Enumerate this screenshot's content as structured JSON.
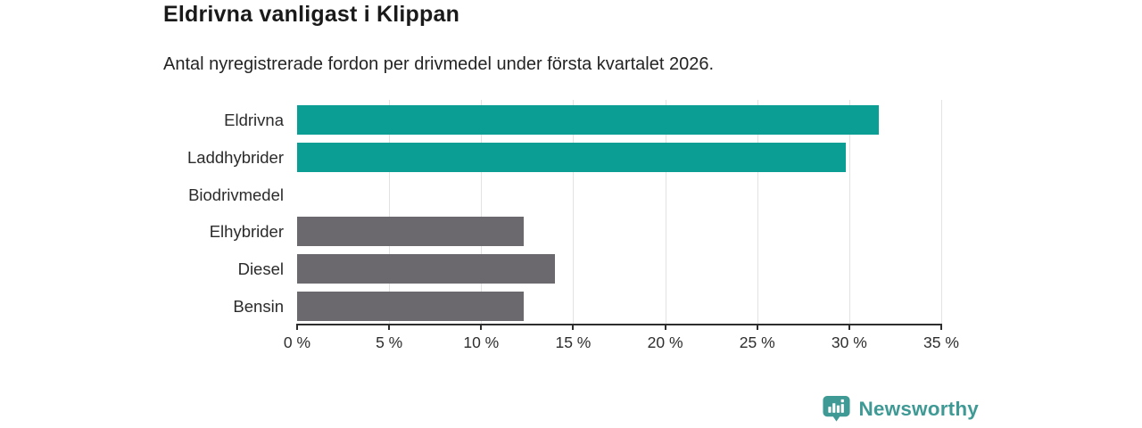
{
  "header": {
    "title": "Eldrivna vanligast i Klippan",
    "subtitle": "Antal nyregistrerade fordon per drivmedel under första kvartalet 2026."
  },
  "chart_data": {
    "type": "bar",
    "orientation": "horizontal",
    "title": "Eldrivna vanligast i Klippan",
    "subtitle": "Antal nyregistrerade fordon per drivmedel under första kvartalet 2026.",
    "categories": [
      "Eldrivna",
      "Laddhybrider",
      "Biodrivmedel",
      "Elhybrider",
      "Diesel",
      "Bensin"
    ],
    "values": [
      31.6,
      29.8,
      0,
      12.3,
      14.0,
      12.3
    ],
    "unit": "%",
    "xlim": [
      0,
      35
    ],
    "xticks": [
      0,
      5,
      10,
      15,
      20,
      25,
      30,
      35
    ],
    "xtick_labels": [
      "0 %",
      "5 %",
      "10 %",
      "15 %",
      "20 %",
      "25 %",
      "30 %",
      "35 %"
    ],
    "bar_colors": [
      "#0b9e95",
      "#0b9e95",
      "#0b9e95",
      "#6b696d",
      "#6b696d",
      "#6b696d"
    ],
    "grid": true,
    "legend": null
  },
  "colors": {
    "accent_teal": "#0b9e95",
    "neutral_gray": "#6b696d",
    "gridline": "#e2e2e2",
    "axis": "#2e2e2e",
    "brand_teal": "#3f9a95"
  },
  "footer": {
    "brand": "Newsworthy"
  }
}
